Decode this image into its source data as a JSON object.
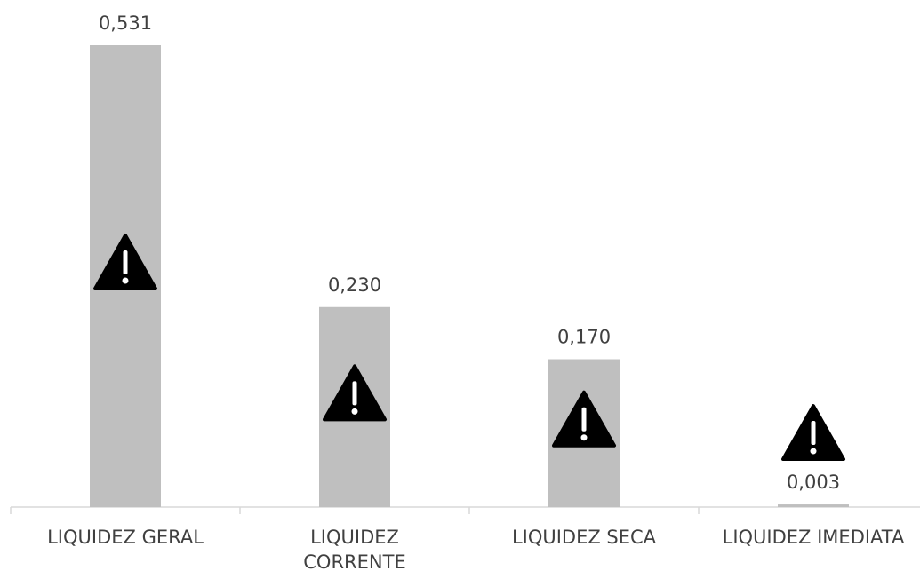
{
  "chart_data": {
    "type": "bar",
    "categories": [
      "LIQUIDEZ GERAL",
      "LIQUIDEZ CORRENTE",
      "LIQUIDEZ SECA",
      "LIQUIDEZ IMEDIATA"
    ],
    "values": [
      0.531,
      0.23,
      0.17,
      0.003
    ],
    "value_labels": [
      "0,531",
      "0,230",
      "0,170",
      "0,003"
    ],
    "color": "#bfbfbf"
  }
}
